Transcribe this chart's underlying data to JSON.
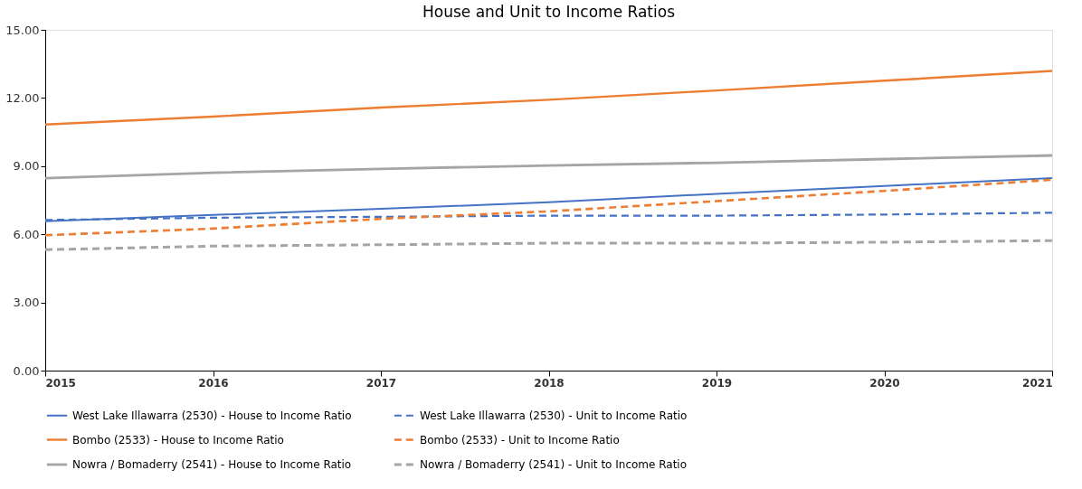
{
  "chart_data": {
    "type": "line",
    "title": "House and Unit to Income Ratios",
    "x": [
      2015,
      2016,
      2017,
      2018,
      2019,
      2020,
      2021
    ],
    "xlim": [
      2015,
      2021
    ],
    "xticks": [
      2015,
      2016,
      2017,
      2018,
      2019,
      2020,
      2021
    ],
    "ylim": [
      0,
      15
    ],
    "yticks": [
      {
        "value": 0,
        "label": "0.00"
      },
      {
        "value": 3,
        "label": "3.00"
      },
      {
        "value": 6,
        "label": "6.00"
      },
      {
        "value": 9,
        "label": "9.00"
      },
      {
        "value": 12,
        "label": "12.00"
      },
      {
        "value": 15,
        "label": "15.00"
      }
    ],
    "grid": false,
    "legend": "bottom",
    "marker": "none",
    "series": [
      {
        "name": "West Lake Illawarra (2530) - House to Income Ratio",
        "color": "#4472c4",
        "line_style": "solid",
        "values": [
          6.57,
          6.85,
          7.12,
          7.41,
          7.78,
          8.13,
          8.47
        ]
      },
      {
        "name": "West Lake Illawarra (2530) - Unit to Income Ratio",
        "color": "#4472c4",
        "line_style": "dashed",
        "values": [
          6.63,
          6.73,
          6.77,
          6.82,
          6.82,
          6.87,
          6.95
        ]
      },
      {
        "name": "Bombo (2533) - House to Income Ratio",
        "color": "#ed7d31",
        "line_style": "solid",
        "values": [
          10.83,
          11.18,
          11.58,
          11.92,
          12.33,
          12.76,
          13.19
        ]
      },
      {
        "name": "Bombo (2533) - Unit to Income Ratio",
        "color": "#ed7d31",
        "line_style": "dashed",
        "values": [
          5.96,
          6.25,
          6.68,
          7.01,
          7.46,
          7.91,
          8.4
        ]
      },
      {
        "name": "Nowra / Bomaderry (2541) - House to Income Ratio",
        "color": "#a5a5a5",
        "line_style": "solid",
        "values": [
          8.47,
          8.71,
          8.88,
          9.03,
          9.15,
          9.31,
          9.47
        ]
      },
      {
        "name": "Nowra / Bomaderry (2541) - Unit to Income Ratio",
        "color": "#a5a5a5",
        "line_style": "dashed",
        "values": [
          5.32,
          5.48,
          5.54,
          5.61,
          5.61,
          5.65,
          5.72
        ]
      }
    ]
  }
}
